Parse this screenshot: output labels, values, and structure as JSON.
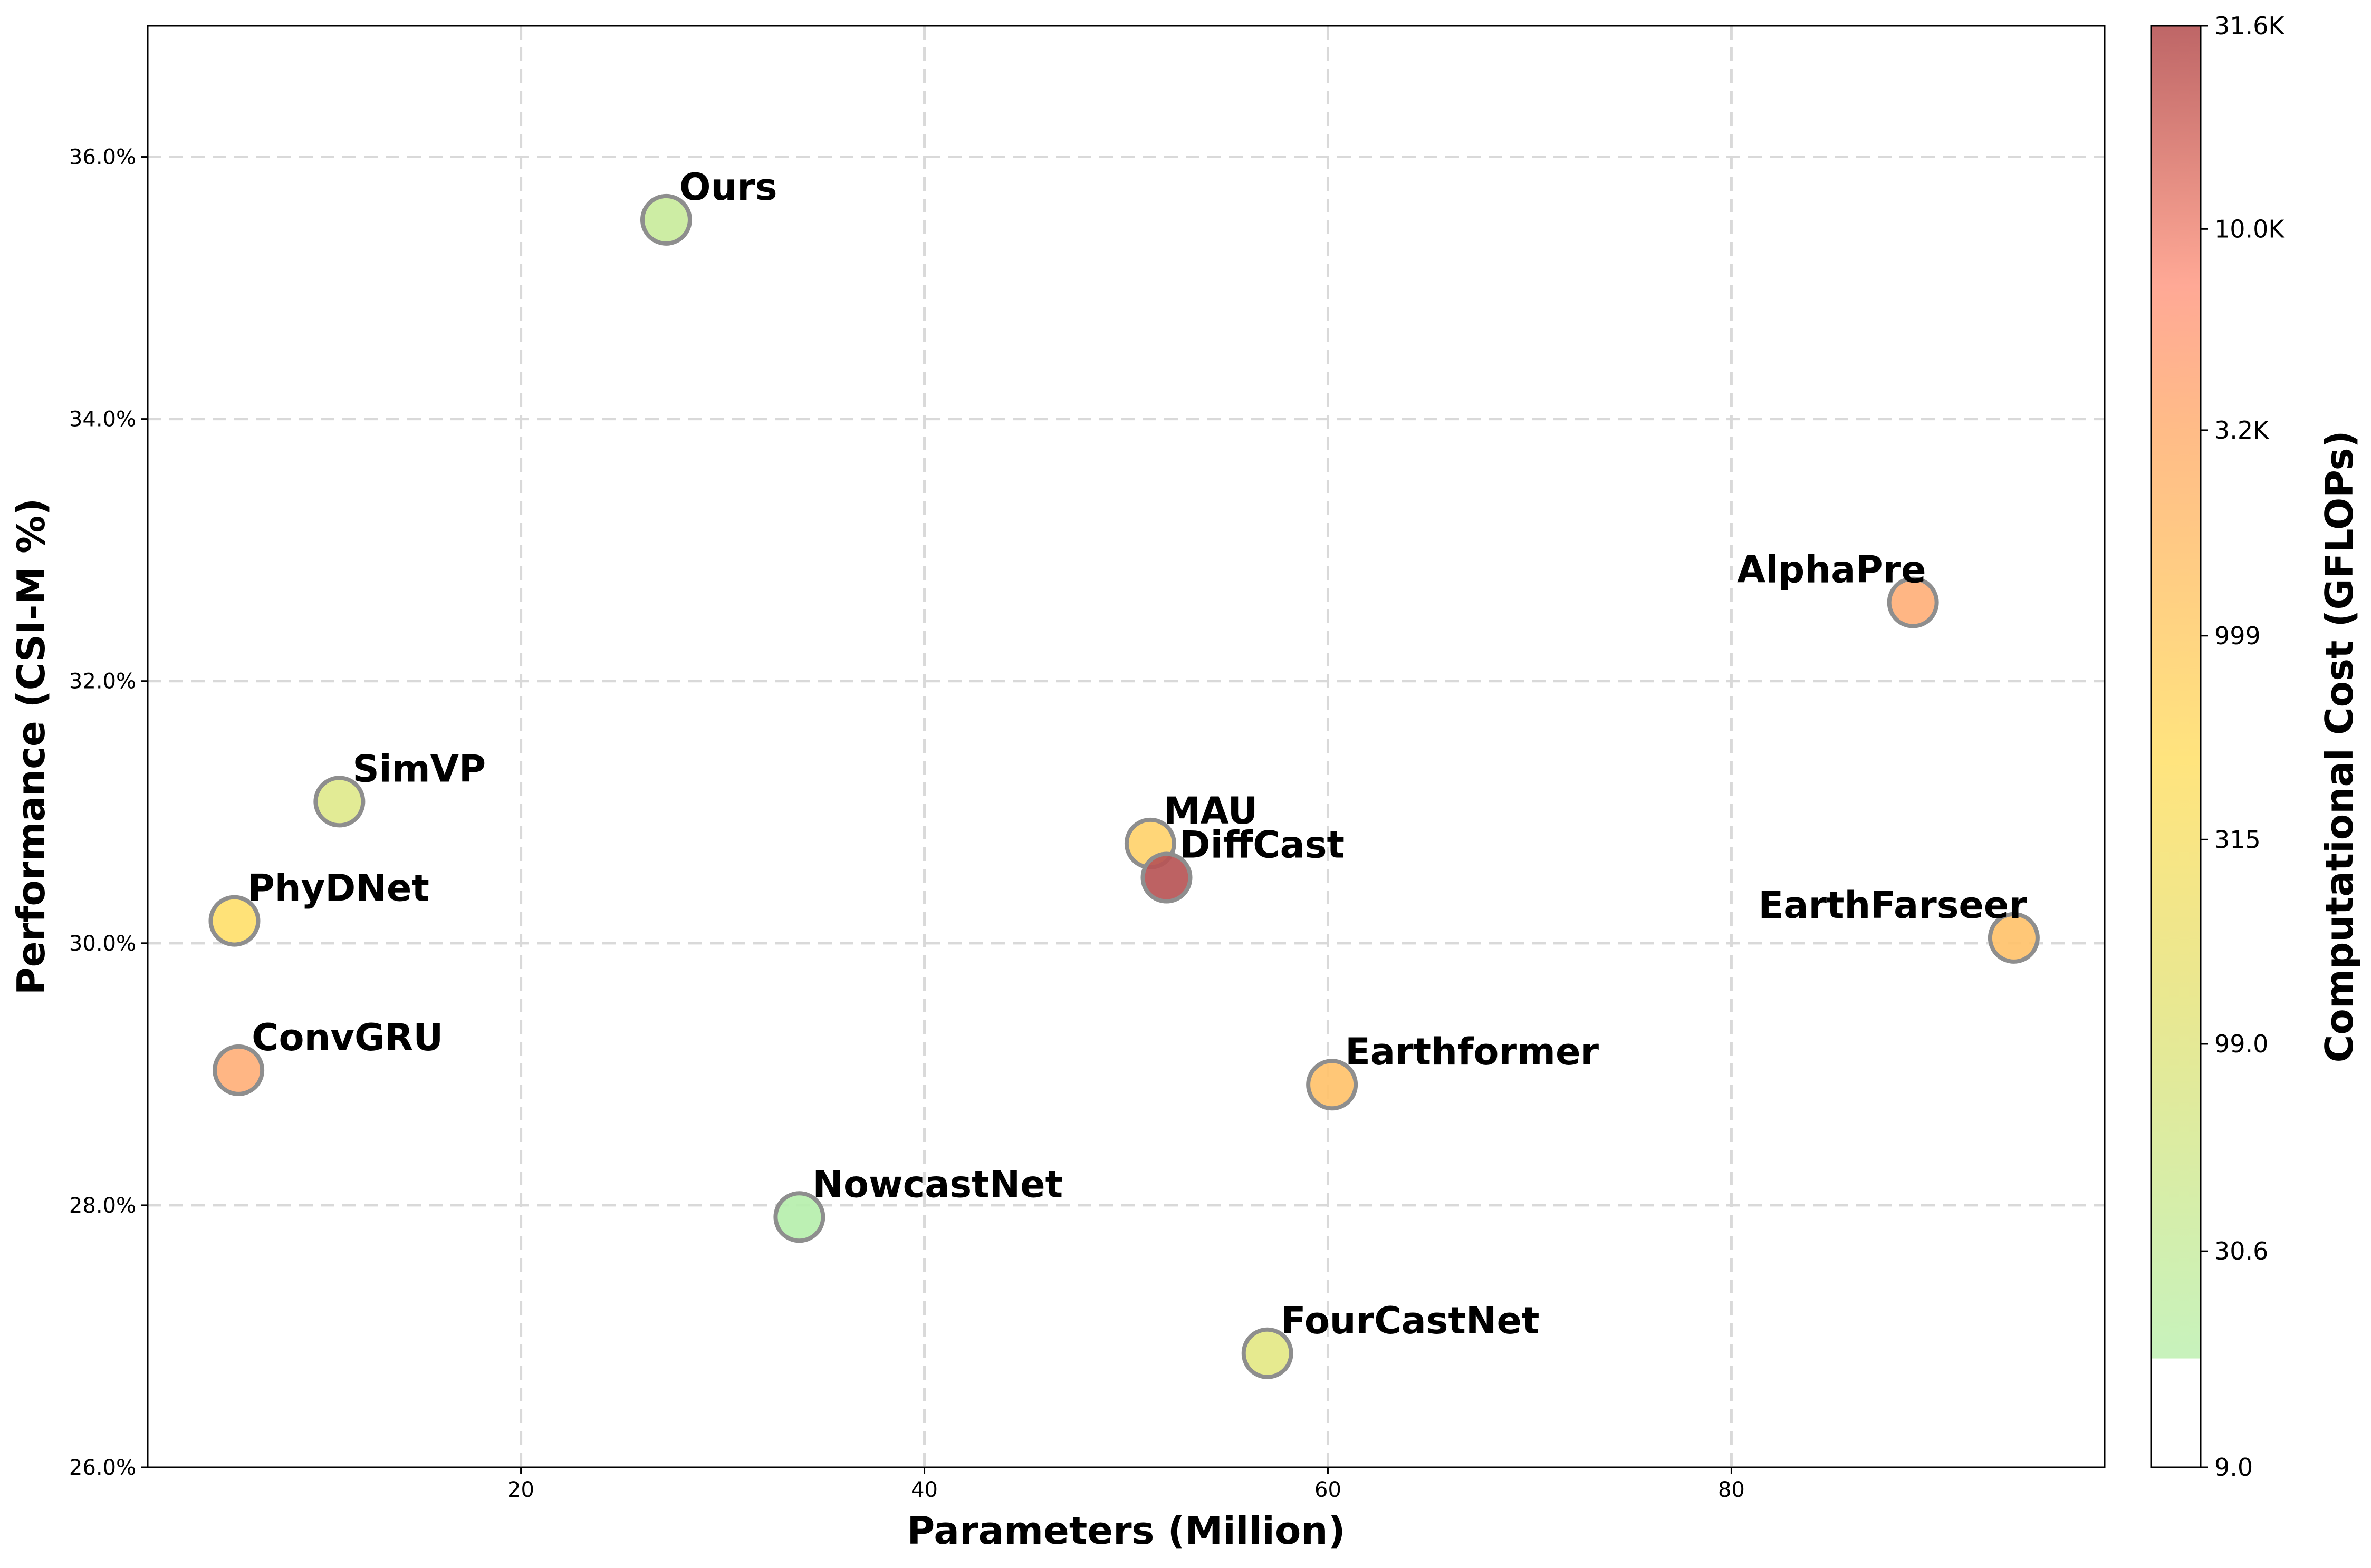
{
  "chart_data": {
    "type": "scatter",
    "title": "",
    "xlabel": "Parameters (Million)",
    "ylabel": "Performance (CSI-M %)",
    "xlim": [
      1.5,
      98.5
    ],
    "ylim": [
      26.0,
      37.0
    ],
    "xticks": [
      {
        "value": 20,
        "label": "20"
      },
      {
        "value": 40,
        "label": "40"
      },
      {
        "value": 60,
        "label": "60"
      },
      {
        "value": 80,
        "label": "80"
      }
    ],
    "yticks": [
      {
        "value": 26,
        "label": "26.0%"
      },
      {
        "value": 28,
        "label": "28.0%"
      },
      {
        "value": 30,
        "label": "30.0%"
      },
      {
        "value": 32,
        "label": "32.0%"
      },
      {
        "value": 34,
        "label": "34.0%"
      },
      {
        "value": 36,
        "label": "36.0%"
      }
    ],
    "grid": true,
    "colorbar": {
      "label": "Computational Cost (GFLOPs)",
      "scale": "log",
      "range": [
        9.0,
        31600
      ],
      "ticks": [
        {
          "value": 9.0,
          "label": "9.0"
        },
        {
          "value": 30.6,
          "label": "30.6"
        },
        {
          "value": 99.0,
          "label": "99.0"
        },
        {
          "value": 315,
          "label": "315"
        },
        {
          "value": 999,
          "label": "999"
        },
        {
          "value": 3200,
          "label": "3.2K"
        },
        {
          "value": 10000,
          "label": "10.0K"
        },
        {
          "value": 31600,
          "label": "31.6K"
        }
      ],
      "stops": [
        {
          "at": 0.0,
          "color": "#ffffff"
        },
        {
          "at": 0.075,
          "color": "#ffffff"
        },
        {
          "at": 0.076,
          "color": "#c1f1b5"
        },
        {
          "at": 0.32,
          "color": "#e6e585"
        },
        {
          "at": 0.49,
          "color": "#ffe170"
        },
        {
          "at": 0.72,
          "color": "#ffb47a"
        },
        {
          "at": 0.82,
          "color": "#ff9f8a"
        },
        {
          "at": 1.0,
          "color": "#b75556"
        }
      ]
    },
    "points": [
      {
        "name": "Ours",
        "x": 27.2,
        "y": 35.52,
        "color": "#c9ec9c",
        "label_pos": "upper-right"
      },
      {
        "name": "SimVP",
        "x": 11.0,
        "y": 31.08,
        "color": "#dfe98c",
        "label_pos": "upper-right"
      },
      {
        "name": "PhyDNet",
        "x": 5.8,
        "y": 30.17,
        "color": "#ffdf6c",
        "label_pos": "upper-right"
      },
      {
        "name": "ConvGRU",
        "x": 6.0,
        "y": 29.03,
        "color": "#ffb07a",
        "label_pos": "upper-right"
      },
      {
        "name": "NowcastNet",
        "x": 33.8,
        "y": 27.91,
        "color": "#b6efad",
        "label_pos": "upper-right"
      },
      {
        "name": "MAU",
        "x": 51.2,
        "y": 30.76,
        "color": "#ffd36c",
        "label_pos": "upper-right"
      },
      {
        "name": "DiffCast",
        "x": 52.0,
        "y": 30.5,
        "color": "#b75556",
        "label_pos": "upper-right"
      },
      {
        "name": "FourCastNet",
        "x": 57.0,
        "y": 26.87,
        "color": "#e4e886",
        "label_pos": "upper-right"
      },
      {
        "name": "Earthformer",
        "x": 60.2,
        "y": 28.92,
        "color": "#ffc26b",
        "label_pos": "upper-right"
      },
      {
        "name": "AlphaPre",
        "x": 89.0,
        "y": 32.6,
        "color": "#ffb07a",
        "label_pos": "upper-left"
      },
      {
        "name": "EarthFarseer",
        "x": 94.0,
        "y": 30.04,
        "color": "#ffc26b",
        "label_pos": "upper-left"
      }
    ]
  }
}
